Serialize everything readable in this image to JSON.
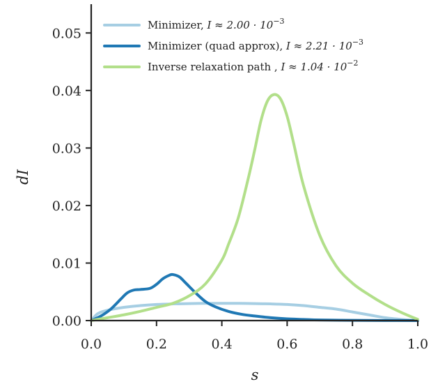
{
  "chart_data": {
    "type": "line",
    "xlabel": "s",
    "ylabel": "dI",
    "xlim": [
      0.0,
      1.0
    ],
    "ylim": [
      0.0,
      0.055
    ],
    "x_ticks": [
      "0.0",
      "0.2",
      "0.4",
      "0.6",
      "0.8",
      "1.0"
    ],
    "x_tick_values": [
      0.0,
      0.2,
      0.4,
      0.6,
      0.8,
      1.0
    ],
    "y_ticks": [
      "0.00",
      "0.01",
      "0.02",
      "0.03",
      "0.04",
      "0.05"
    ],
    "y_tick_values": [
      0.0,
      0.01,
      0.02,
      0.03,
      0.04,
      0.05
    ],
    "grid": false,
    "legend_position": "top-left",
    "series": [
      {
        "name": "Minimizer, I ≈ 2.00 · 10⁻³",
        "color": "#a6cee3",
        "x": [
          0.0,
          0.02,
          0.05,
          0.1,
          0.15,
          0.2,
          0.25,
          0.3,
          0.35,
          0.4,
          0.45,
          0.5,
          0.55,
          0.6,
          0.65,
          0.7,
          0.75,
          0.8,
          0.85,
          0.9,
          0.95,
          1.0
        ],
        "y": [
          0.0,
          0.0012,
          0.0018,
          0.0023,
          0.0026,
          0.0028,
          0.0029,
          0.00295,
          0.003,
          0.003,
          0.003,
          0.00295,
          0.0029,
          0.0028,
          0.0026,
          0.0023,
          0.002,
          0.0015,
          0.001,
          0.0005,
          0.0002,
          0.0
        ]
      },
      {
        "name": "Minimizer (quad approx), I ≈ 2.21 · 10⁻³",
        "color": "#1f78b4",
        "x": [
          0.0,
          0.03,
          0.06,
          0.09,
          0.11,
          0.13,
          0.15,
          0.18,
          0.2,
          0.22,
          0.24,
          0.25,
          0.27,
          0.29,
          0.32,
          0.35,
          0.38,
          0.42,
          0.46,
          0.5,
          0.55,
          0.6,
          0.65,
          0.7,
          0.8,
          0.9,
          1.0
        ],
        "y": [
          0.0,
          0.0008,
          0.002,
          0.0037,
          0.0048,
          0.0053,
          0.0054,
          0.0056,
          0.0063,
          0.0073,
          0.0079,
          0.008,
          0.0076,
          0.0065,
          0.0048,
          0.0033,
          0.0024,
          0.0016,
          0.0011,
          0.0008,
          0.0005,
          0.0003,
          0.0002,
          0.0001,
          5e-05,
          2e-05,
          0.0
        ]
      },
      {
        "name": "Inverse relaxation path , I ≈ 1.04 · 10⁻²",
        "color": "#b2df8a",
        "x": [
          0.0,
          0.05,
          0.1,
          0.15,
          0.2,
          0.25,
          0.3,
          0.35,
          0.4,
          0.42,
          0.45,
          0.48,
          0.5,
          0.52,
          0.54,
          0.56,
          0.58,
          0.6,
          0.62,
          0.65,
          0.7,
          0.75,
          0.8,
          0.85,
          0.9,
          0.95,
          1.0
        ],
        "y": [
          0.0,
          0.0005,
          0.001,
          0.0016,
          0.0023,
          0.003,
          0.0043,
          0.0064,
          0.0105,
          0.0132,
          0.0178,
          0.0245,
          0.0295,
          0.0348,
          0.0382,
          0.0393,
          0.0385,
          0.0355,
          0.0308,
          0.0235,
          0.0148,
          0.0095,
          0.0065,
          0.0045,
          0.0028,
          0.0014,
          0.0002
        ]
      }
    ],
    "legend": [
      {
        "label": "Minimizer, ",
        "math": "I ≈ 2.00 · 10",
        "exp": "−3"
      },
      {
        "label": "Minimizer (quad approx), ",
        "math": "I ≈ 2.21 · 10",
        "exp": "−3"
      },
      {
        "label": "Inverse relaxation path , ",
        "math": "I ≈ 1.04 · 10",
        "exp": "−2"
      }
    ]
  }
}
